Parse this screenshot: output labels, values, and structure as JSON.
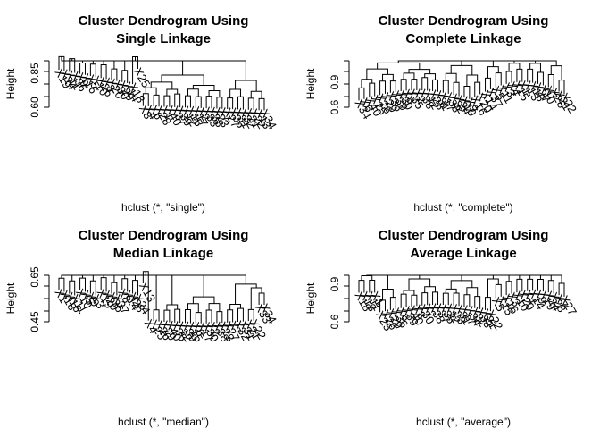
{
  "chart_data": [
    {
      "type": "dendrogram",
      "title_line1": "Cluster Dendrogram Using",
      "title_line2": "Single Linkage",
      "xlabel": "hclust (*, \"single\")",
      "ylabel": "Height",
      "yticks": [
        "0.60",
        "0.85"
      ],
      "ylim": [
        0.55,
        0.9
      ],
      "leaves": [
        "X19",
        "X24",
        "X11",
        "X36",
        "X9",
        "X16",
        "X5",
        "X10",
        "X26",
        "X3",
        "X20",
        "X30",
        "X29",
        "X14",
        "X18",
        "X25",
        "X8",
        "X4",
        "X6",
        "X28",
        "X1",
        "X40",
        "X37",
        "X39",
        "X12",
        "X15",
        "X17",
        "X2",
        "X33",
        "X38",
        "X23",
        "X7",
        "X27",
        "X35",
        "X31",
        "X32",
        "X21",
        "X22",
        "X13",
        "X34"
      ]
    },
    {
      "type": "dendrogram",
      "title_line1": "Cluster Dendrogram Using",
      "title_line2": "Complete Linkage",
      "xlabel": "hclust (*, \"complete\")",
      "ylabel": "Height",
      "yticks": [
        "0.6",
        "0.9"
      ],
      "ylim": [
        0.55,
        1.0
      ],
      "leaves": [
        "X34",
        "X6",
        "X40",
        "X25",
        "X26",
        "X29",
        "X36",
        "X39",
        "X30",
        "X8",
        "X35",
        "X2",
        "X38",
        "X12",
        "X23",
        "X31",
        "X17",
        "X33",
        "X32",
        "X24",
        "X19",
        "X9",
        "X16",
        "X20",
        "X14",
        "X37",
        "X5",
        "X11",
        "X3",
        "X4",
        "X15",
        "X1",
        "X13",
        "X18",
        "X27",
        "X10",
        "X7",
        "X28",
        "X21",
        "X22"
      ]
    },
    {
      "type": "dendrogram",
      "title_line1": "Cluster Dendrogram Using",
      "title_line2": "Median Linkage",
      "xlabel": "hclust (*, \"median\")",
      "ylabel": "Height",
      "yticks": [
        "0.45",
        "0.65"
      ],
      "ylim": [
        0.42,
        0.7
      ],
      "leaves": [
        "X1",
        "X18",
        "X16",
        "X11",
        "X10",
        "X5",
        "X9",
        "X3",
        "X19",
        "X20",
        "X36",
        "X37",
        "X8",
        "X14",
        "X28",
        "X24",
        "X13",
        "X4",
        "X25",
        "X26",
        "X29",
        "X40",
        "X35",
        "X12",
        "X39",
        "X15",
        "X6",
        "X17",
        "X30",
        "X2",
        "X38",
        "X23",
        "X27",
        "X7",
        "X32",
        "X31",
        "X21",
        "X22",
        "X33",
        "X34"
      ]
    },
    {
      "type": "dendrogram",
      "title_line1": "Cluster Dendrogram Using",
      "title_line2": "Average Linkage",
      "xlabel": "hclust (*, \"average\")",
      "ylabel": "Height",
      "yticks": [
        "0.6",
        "0.9"
      ],
      "ylim": [
        0.55,
        1.0
      ],
      "leaves": [
        "X18",
        "X13",
        "X11",
        "X1",
        "X25",
        "X26",
        "X29",
        "X36",
        "X6",
        "X39",
        "X40",
        "X8",
        "X30",
        "X2",
        "X38",
        "X37",
        "X35",
        "X12",
        "X23",
        "X31",
        "X17",
        "X34",
        "X32",
        "X33",
        "X21",
        "X22",
        "X5",
        "X15",
        "X16",
        "X3",
        "X10",
        "X20",
        "X4",
        "X14",
        "X9",
        "X19",
        "X24",
        "X28",
        "X7",
        "X27"
      ]
    }
  ]
}
